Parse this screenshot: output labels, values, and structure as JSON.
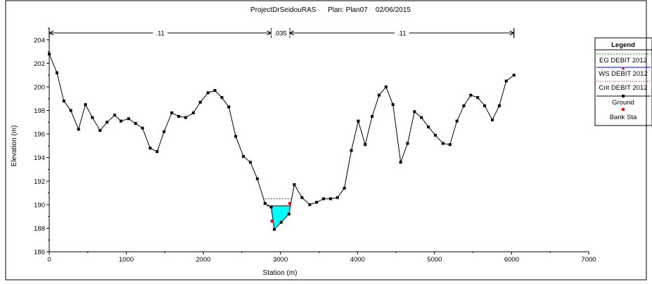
{
  "chart_data": {
    "type": "line",
    "title": "ProjectDrSeidouRAS      Plan: Plan07    02/06/2015",
    "xlabel": "Station (m)",
    "ylabel": "Elevation (m)",
    "xlim": [
      0,
      7000
    ],
    "ylim": [
      186,
      205
    ],
    "x_ticks": [
      0,
      1000,
      2000,
      3000,
      4000,
      5000,
      6000,
      7000
    ],
    "y_ticks": [
      186,
      188,
      190,
      192,
      194,
      196,
      198,
      200,
      202,
      204
    ],
    "grid": false,
    "legend_position": "right",
    "legend_title": "Legend",
    "ground": [
      [
        0,
        202.8
      ],
      [
        100,
        201.2
      ],
      [
        190,
        198.8
      ],
      [
        280,
        198.0
      ],
      [
        380,
        196.4
      ],
      [
        470,
        198.5
      ],
      [
        560,
        197.4
      ],
      [
        660,
        196.3
      ],
      [
        750,
        197.0
      ],
      [
        850,
        197.6
      ],
      [
        930,
        197.1
      ],
      [
        1030,
        197.3
      ],
      [
        1120,
        196.9
      ],
      [
        1210,
        196.5
      ],
      [
        1310,
        194.8
      ],
      [
        1400,
        194.5
      ],
      [
        1490,
        196.2
      ],
      [
        1590,
        197.8
      ],
      [
        1680,
        197.5
      ],
      [
        1770,
        197.4
      ],
      [
        1870,
        197.8
      ],
      [
        1960,
        198.7
      ],
      [
        2060,
        199.5
      ],
      [
        2150,
        199.7
      ],
      [
        2240,
        199.1
      ],
      [
        2330,
        198.3
      ],
      [
        2420,
        195.8
      ],
      [
        2520,
        194.1
      ],
      [
        2610,
        193.6
      ],
      [
        2700,
        192.2
      ],
      [
        2800,
        190.1
      ],
      [
        2880,
        189.8
      ],
      [
        2920,
        187.9
      ],
      [
        3010,
        188.5
      ],
      [
        3110,
        189.2
      ],
      [
        3180,
        191.7
      ],
      [
        3280,
        190.6
      ],
      [
        3380,
        190.0
      ],
      [
        3470,
        190.2
      ],
      [
        3560,
        190.5
      ],
      [
        3650,
        190.5
      ],
      [
        3740,
        190.6
      ],
      [
        3830,
        191.4
      ],
      [
        3920,
        194.6
      ],
      [
        4010,
        197.1
      ],
      [
        4100,
        195.1
      ],
      [
        4190,
        197.5
      ],
      [
        4280,
        199.3
      ],
      [
        4370,
        200.0
      ],
      [
        4460,
        198.5
      ],
      [
        4560,
        193.6
      ],
      [
        4650,
        195.2
      ],
      [
        4740,
        197.9
      ],
      [
        4830,
        197.4
      ],
      [
        4920,
        196.6
      ],
      [
        5010,
        195.9
      ],
      [
        5110,
        195.2
      ],
      [
        5200,
        195.1
      ],
      [
        5290,
        197.1
      ],
      [
        5380,
        198.4
      ],
      [
        5470,
        199.3
      ],
      [
        5560,
        199.1
      ],
      [
        5650,
        198.4
      ],
      [
        5750,
        197.2
      ],
      [
        5840,
        198.4
      ],
      [
        5930,
        200.5
      ],
      [
        6030,
        201.0
      ]
    ],
    "eg_level": 190.5,
    "eg_extent": [
      2800,
      3160
    ],
    "ws_level": 189.9,
    "ws_extent": [
      2820,
      3135
    ],
    "bank_stations": [
      [
        2890,
        188.6
      ],
      [
        3120,
        190.1
      ]
    ],
    "manning": [
      {
        "label": ".11",
        "from": 0,
        "to": 2880
      },
      {
        "label": ".035",
        "from": 2880,
        "to": 3120
      },
      {
        "label": ".11",
        "from": 3120,
        "to": 6030
      }
    ],
    "colors": {
      "ground": "#000000",
      "ws_fill": "#00ffff",
      "ws_line": "#0000ff",
      "eg_line": "#008000",
      "crit_line": "#ff0000",
      "bank": "#ff0000"
    },
    "legend": [
      {
        "label": "EG DEBIT 2012",
        "style": "dashed",
        "color": "#008000"
      },
      {
        "label": "WS DEBIT 2012",
        "style": "solid",
        "color": "#0000ff"
      },
      {
        "label": "Crit DEBIT 2012",
        "style": "dotted",
        "color": "#ff0000"
      },
      {
        "label": "Ground",
        "style": "line-marker",
        "color": "#000000"
      },
      {
        "label": "Bank Sta",
        "style": "marker",
        "color": "#ff0000"
      }
    ]
  }
}
